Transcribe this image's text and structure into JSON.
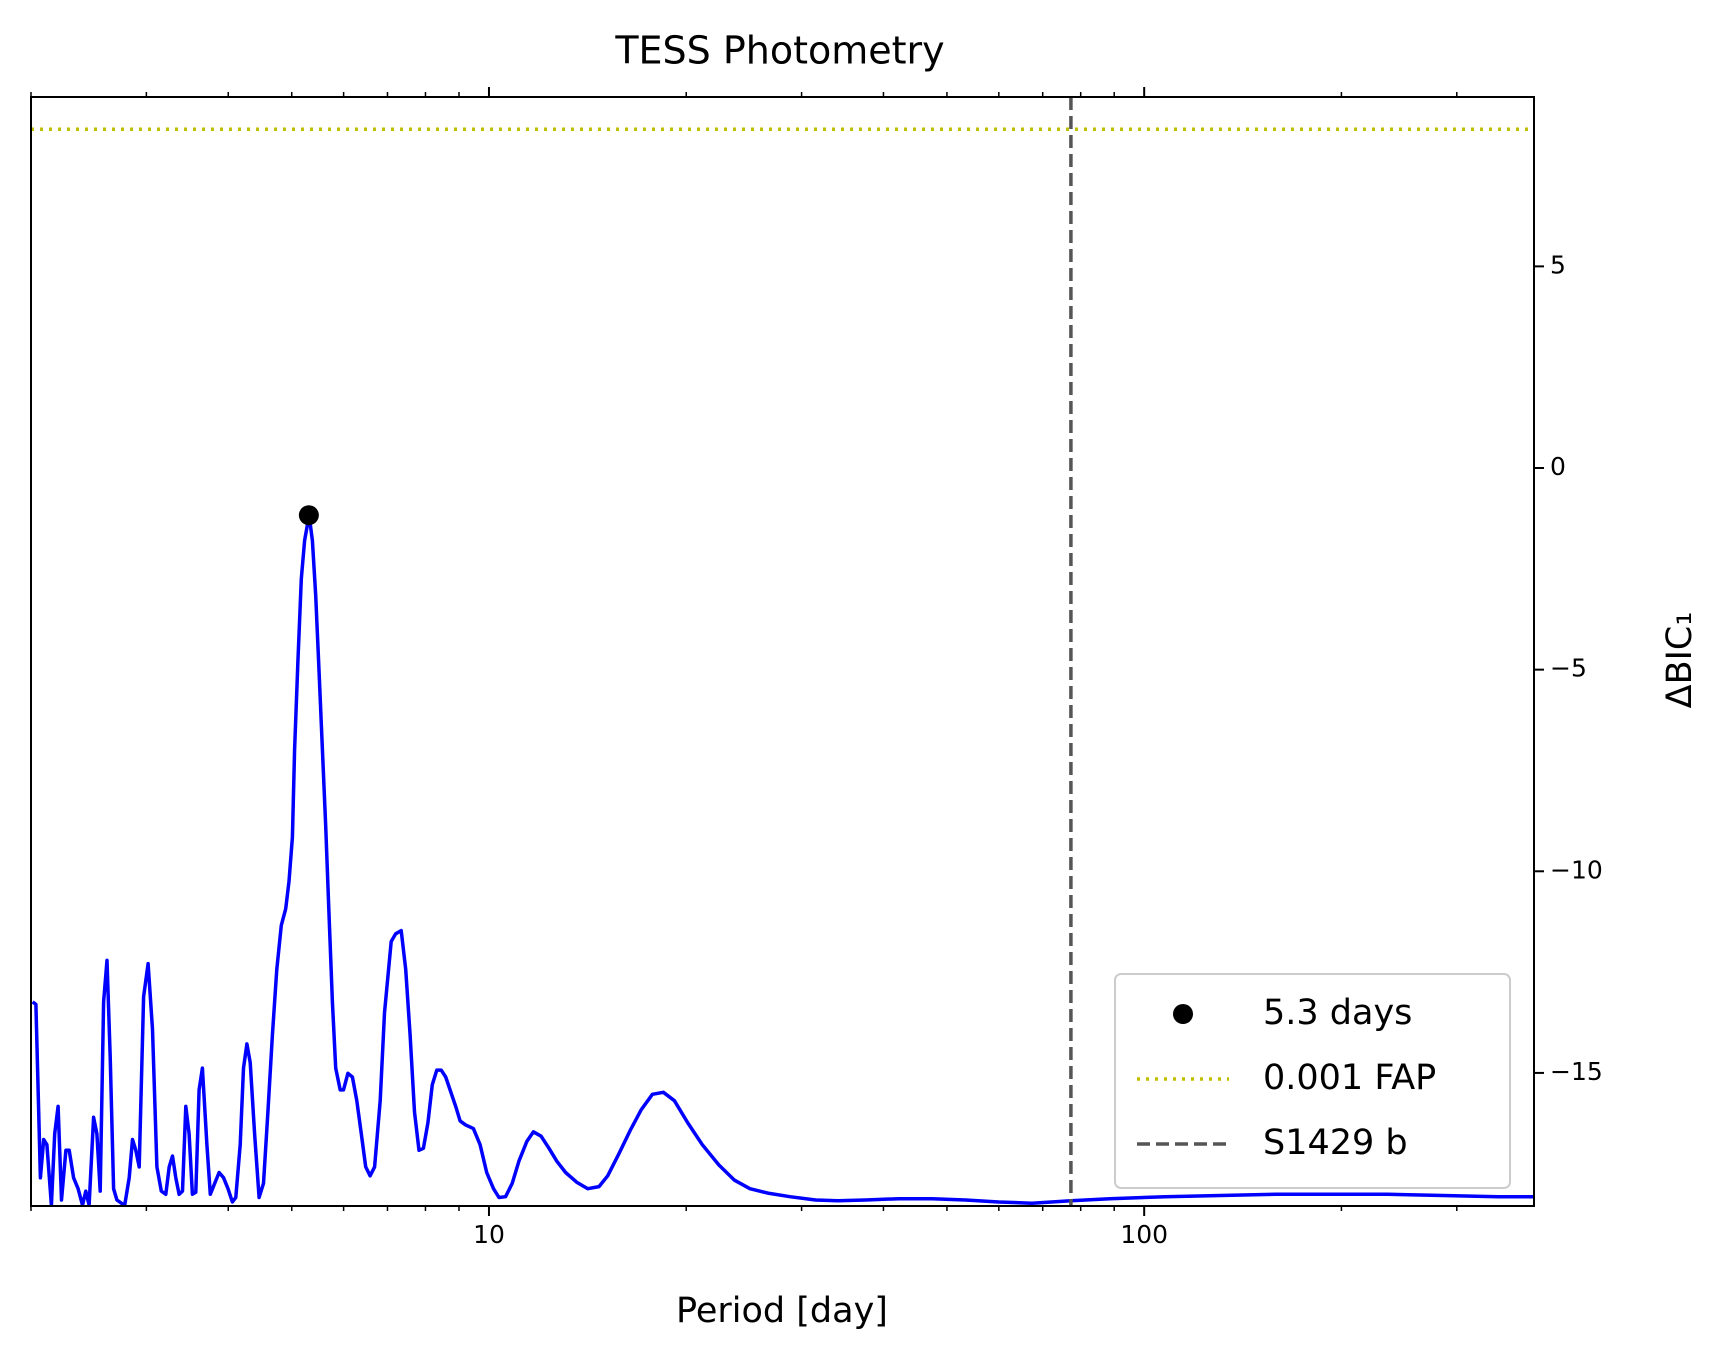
{
  "chart_data": {
    "type": "line",
    "title": "TESS Photometry",
    "x_label": "Period [day]",
    "y_label": "ΔBIC₁",
    "xscale": "log",
    "xlim": [
      2.0,
      393.5
    ],
    "ylim": [
      -18.3,
      9.2
    ],
    "xticks": [
      10,
      100
    ],
    "xminor_ticks": [
      2,
      3,
      4,
      5,
      6,
      7,
      8,
      9,
      20,
      30,
      40,
      50,
      60,
      70,
      80,
      90,
      200,
      300
    ],
    "yticks": [
      5,
      0,
      {
        "value": -5,
        "label": "−5"
      },
      {
        "value": -10,
        "label": "−10"
      },
      {
        "value": -15,
        "label": "−15"
      }
    ],
    "y_axis_side": "right",
    "color": "#0000ff",
    "legend": "lower right",
    "x": [
      2.011,
      2.035,
      2.067,
      2.091,
      2.115,
      2.149,
      2.174,
      2.2,
      2.226,
      2.261,
      2.287,
      2.323,
      2.36,
      2.397,
      2.425,
      2.453,
      2.492,
      2.521,
      2.551,
      2.581,
      2.612,
      2.642,
      2.674,
      2.705,
      2.748,
      2.78,
      2.824,
      2.857,
      2.891,
      2.925,
      2.971,
      3.018,
      3.065,
      3.113,
      3.162,
      3.212,
      3.25,
      3.288,
      3.327,
      3.366,
      3.406,
      3.446,
      3.486,
      3.527,
      3.569,
      3.611,
      3.653,
      3.711,
      3.755,
      3.814,
      3.874,
      3.935,
      3.997,
      4.059,
      4.107,
      4.172,
      4.221,
      4.271,
      4.321,
      4.389,
      4.458,
      4.528,
      4.599,
      4.672,
      4.745,
      4.82,
      4.895,
      4.953,
      5.012,
      5.051,
      5.11,
      5.171,
      5.231,
      5.314,
      5.377,
      5.44,
      5.504,
      5.569,
      5.634,
      5.7,
      5.768,
      5.836,
      5.928,
      5.998,
      6.092,
      6.188,
      6.285,
      6.384,
      6.484,
      6.586,
      6.69,
      6.822,
      6.928,
      7.092,
      7.204,
      7.347,
      7.462,
      7.58,
      7.698,
      7.82,
      7.943,
      8.068,
      8.195,
      8.324,
      8.455,
      8.588,
      8.723,
      8.896,
      9.035,
      9.213,
      9.469,
      9.692,
      9.922,
      10.16,
      10.36,
      10.6,
      10.85,
      11.11,
      11.42,
      11.69,
      12.01,
      12.35,
      12.69,
      13.09,
      13.61,
      14.15,
      14.72,
      15.18,
      15.79,
      16.42,
      17.08,
      17.76,
      18.46,
      19.19,
      20.11,
      21.16,
      22.43,
      23.7,
      25.02,
      26.64,
      28.8,
      31.51,
      34.06,
      37.55,
      42.22,
      47.47,
      53.37,
      59.98,
      67.43,
      77.28,
      88.61,
      107.7,
      130.9,
      159.1,
      193.4,
      235.1,
      285.7,
      347.3,
      393.5
    ],
    "values": [
      -13.24,
      -13.3,
      -17.6,
      -16.65,
      -16.78,
      -18.28,
      -16.51,
      -15.83,
      -18.15,
      -16.92,
      -16.92,
      -17.6,
      -17.87,
      -18.28,
      -17.93,
      -18.28,
      -16.1,
      -16.51,
      -17.93,
      -13.24,
      -12.21,
      -14.6,
      -17.87,
      -18.15,
      -18.23,
      -18.28,
      -17.6,
      -16.65,
      -16.92,
      -17.33,
      -13.11,
      -12.29,
      -13.92,
      -17.33,
      -17.93,
      -18.01,
      -17.33,
      -17.06,
      -17.6,
      -18.01,
      -17.93,
      -15.83,
      -16.51,
      -18.01,
      -17.96,
      -15.42,
      -14.88,
      -16.78,
      -18.01,
      -17.74,
      -17.47,
      -17.6,
      -17.87,
      -18.2,
      -18.09,
      -16.78,
      -14.88,
      -14.28,
      -14.74,
      -16.51,
      -18.09,
      -17.74,
      -15.97,
      -14.06,
      -12.43,
      -11.34,
      -10.93,
      -10.25,
      -9.16,
      -6.98,
      -4.8,
      -2.75,
      -1.8,
      -1.17,
      -1.8,
      -3.16,
      -5.07,
      -6.98,
      -8.88,
      -11.06,
      -13.24,
      -14.88,
      -15.42,
      -15.42,
      -15.01,
      -15.1,
      -15.69,
      -16.51,
      -17.33,
      -17.55,
      -17.33,
      -15.69,
      -13.51,
      -11.74,
      -11.55,
      -11.47,
      -12.43,
      -14.06,
      -15.97,
      -16.92,
      -16.87,
      -16.24,
      -15.29,
      -14.93,
      -14.93,
      -15.1,
      -15.42,
      -15.83,
      -16.19,
      -16.29,
      -16.38,
      -16.78,
      -17.47,
      -17.87,
      -18.09,
      -18.07,
      -17.74,
      -17.19,
      -16.7,
      -16.46,
      -16.57,
      -16.87,
      -17.19,
      -17.47,
      -17.71,
      -17.87,
      -17.82,
      -17.55,
      -17.0,
      -16.43,
      -15.91,
      -15.53,
      -15.48,
      -15.69,
      -16.24,
      -16.78,
      -17.28,
      -17.66,
      -17.87,
      -17.98,
      -18.07,
      -18.15,
      -18.17,
      -18.15,
      -18.12,
      -18.12,
      -18.15,
      -18.2,
      -18.23,
      -18.17,
      -18.12,
      -18.07,
      -18.04,
      -18.01,
      -18.01,
      -18.01,
      -18.04,
      -18.07,
      -18.07
    ],
    "peak": {
      "name": "5.3 days",
      "x": 5.31,
      "y": -1.17,
      "color": "#000000"
    },
    "hline": {
      "name": "0.001 FAP",
      "y": 8.4,
      "color": "#bfbf00"
    },
    "vline": {
      "name": "S1429 b",
      "x": 77.3,
      "color": "#555555"
    }
  }
}
